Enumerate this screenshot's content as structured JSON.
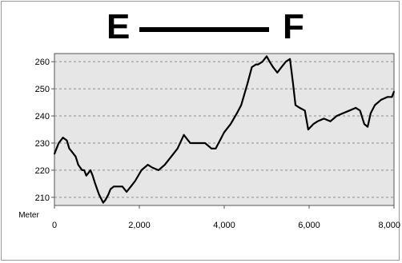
{
  "header": {
    "start_label": "E",
    "end_label": "F"
  },
  "chart_data": {
    "type": "line",
    "title": "E — F",
    "xlabel": "",
    "ylabel": "Meter",
    "xlim": [
      0,
      8000
    ],
    "ylim": [
      207,
      263
    ],
    "x_ticks": [
      "0",
      "2,000",
      "4,000",
      "6,000",
      "8,000"
    ],
    "y_ticks": [
      "210",
      "220",
      "230",
      "240",
      "250",
      "260"
    ],
    "grid": "horizontal dashed",
    "plot_background": "#e6e6e6",
    "line_color": "#000000",
    "series": [
      {
        "x": [
          0,
          100,
          200,
          290,
          350,
          400,
          500,
          560,
          650,
          700,
          750,
          850,
          900,
          960,
          1050,
          1150,
          1200,
          1270,
          1320,
          1400,
          1500,
          1600,
          1700,
          1800,
          1900,
          2050,
          2200,
          2300,
          2450,
          2600,
          2750,
          2900,
          3050,
          3150,
          3200,
          3300,
          3400,
          3550,
          3700,
          3800,
          3900,
          4000,
          4150,
          4300,
          4400,
          4550,
          4650,
          4750,
          4800,
          4900,
          5000,
          5070,
          5150,
          5250,
          5350,
          5450,
          5550,
          5620,
          5680,
          5780,
          5900,
          5980,
          6100,
          6200,
          6350,
          6500,
          6650,
          6800,
          6950,
          7100,
          7200,
          7300,
          7380,
          7450,
          7550,
          7700,
          7850,
          7950,
          8000
        ],
        "y": [
          226,
          230,
          232,
          231,
          228,
          227,
          225,
          222,
          220,
          220,
          218,
          220,
          218,
          215,
          211,
          208,
          209,
          211,
          213,
          214,
          214,
          214,
          212,
          214,
          216,
          220,
          222,
          221,
          220,
          222,
          225,
          228,
          233,
          231,
          230,
          230,
          230,
          230,
          228,
          228,
          231,
          234,
          237,
          241,
          244,
          252,
          258,
          259,
          259,
          260,
          262,
          260,
          258,
          256,
          258,
          260,
          261,
          252,
          244,
          243,
          242,
          235,
          237,
          238,
          239,
          238,
          240,
          241,
          242,
          243,
          242,
          237,
          236,
          241,
          244,
          246,
          247,
          247,
          249
        ]
      }
    ]
  }
}
